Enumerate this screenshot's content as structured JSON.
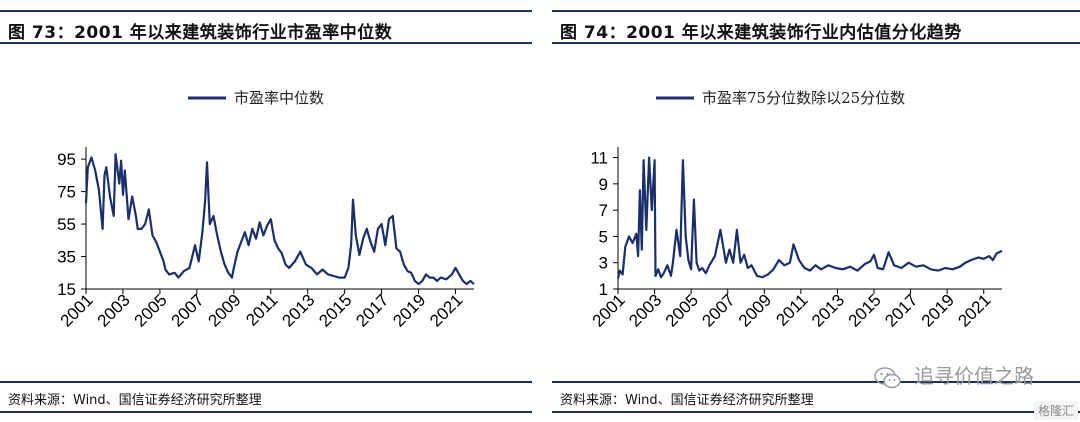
{
  "left_panel": {
    "title": "图 73：2001 年以来建筑装饰行业市盈率中位数",
    "source": "资料来源：Wind、国信证券经济研究所整理"
  },
  "right_panel": {
    "title": "图 74：2001 年以来建筑装饰行业内估值分化趋势",
    "source": "资料来源：Wind、国信证券经济研究所整理"
  },
  "watermark": {
    "text": "追寻价值之路",
    "icon": "wechat-icon"
  },
  "logo": {
    "text": "格隆汇"
  },
  "colors": {
    "line": "#1a2f6b",
    "accent": "#1a2f5a"
  },
  "chart_data": [
    {
      "type": "line",
      "title": "",
      "legend": "市盈率中位数",
      "ylim": [
        15,
        100
      ],
      "xlim": [
        2001,
        2022
      ],
      "yticks": [
        15,
        35,
        55,
        75,
        95
      ],
      "xticks": [
        "2001",
        "2003",
        "2005",
        "2007",
        "2009",
        "2011",
        "2013",
        "2015",
        "2017",
        "2019",
        "2021"
      ],
      "series": [
        {
          "name": "市盈率中位数",
          "x": [
            2001.0,
            2001.1,
            2001.3,
            2001.5,
            2001.7,
            2001.9,
            2002.0,
            2002.1,
            2002.3,
            2002.5,
            2002.6,
            2002.8,
            2002.9,
            2003.0,
            2003.1,
            2003.3,
            2003.5,
            2003.7,
            2003.8,
            2004.0,
            2004.2,
            2004.4,
            2004.6,
            2004.8,
            2005.0,
            2005.2,
            2005.3,
            2005.5,
            2005.8,
            2006.0,
            2006.3,
            2006.6,
            2006.9,
            2007.1,
            2007.3,
            2007.45,
            2007.55,
            2007.7,
            2007.9,
            2008.1,
            2008.3,
            2008.5,
            2008.7,
            2008.9,
            2009.0,
            2009.2,
            2009.4,
            2009.6,
            2009.8,
            2010.0,
            2010.2,
            2010.4,
            2010.6,
            2010.8,
            2011.0,
            2011.2,
            2011.4,
            2011.6,
            2011.8,
            2012.0,
            2012.3,
            2012.6,
            2012.9,
            2013.2,
            2013.5,
            2013.8,
            2014.1,
            2014.4,
            2014.7,
            2015.0,
            2015.2,
            2015.35,
            2015.45,
            2015.6,
            2015.8,
            2016.0,
            2016.2,
            2016.4,
            2016.6,
            2016.8,
            2017.0,
            2017.2,
            2017.4,
            2017.6,
            2017.8,
            2018.0,
            2018.2,
            2018.4,
            2018.6,
            2018.8,
            2019.0,
            2019.2,
            2019.4,
            2019.6,
            2019.8,
            2020.0,
            2020.2,
            2020.5,
            2020.8,
            2021.0,
            2021.2,
            2021.4,
            2021.6,
            2021.8,
            2022.0
          ],
          "values": [
            68,
            90,
            96,
            88,
            76,
            52,
            85,
            90,
            72,
            60,
            98,
            80,
            94,
            73,
            88,
            58,
            72,
            60,
            52,
            52,
            55,
            64,
            48,
            44,
            38,
            32,
            27,
            24,
            25,
            22,
            26,
            28,
            42,
            32,
            50,
            70,
            93,
            55,
            60,
            48,
            38,
            30,
            25,
            22,
            28,
            38,
            44,
            50,
            42,
            52,
            46,
            56,
            48,
            54,
            58,
            45,
            40,
            37,
            30,
            28,
            32,
            38,
            30,
            28,
            24,
            27,
            24,
            23,
            22,
            22,
            28,
            42,
            70,
            48,
            36,
            46,
            52,
            44,
            38,
            52,
            55,
            42,
            58,
            60,
            40,
            38,
            30,
            26,
            25,
            20,
            18,
            20,
            24,
            22,
            22,
            20,
            22,
            21,
            24,
            28,
            24,
            20,
            18,
            20,
            18
          ]
        }
      ]
    },
    {
      "type": "line",
      "title": "",
      "legend": "市盈率75分位数除以25分位数",
      "ylim": [
        1,
        11.5
      ],
      "xlim": [
        2001,
        2022
      ],
      "yticks": [
        1,
        3,
        5,
        7,
        9,
        11
      ],
      "xticks": [
        "2001",
        "2003",
        "2005",
        "2007",
        "2009",
        "2011",
        "2013",
        "2015",
        "2017",
        "2019",
        "2021"
      ],
      "series": [
        {
          "name": "市盈率75分位数除以25分位数",
          "x": [
            2001.0,
            2001.1,
            2001.25,
            2001.4,
            2001.6,
            2001.8,
            2002.0,
            2002.1,
            2002.2,
            2002.3,
            2002.4,
            2002.55,
            2002.7,
            2002.85,
            2003.0,
            2003.05,
            2003.2,
            2003.35,
            2003.5,
            2003.7,
            2003.9,
            2004.0,
            2004.2,
            2004.4,
            2004.55,
            2004.7,
            2004.85,
            2005.0,
            2005.15,
            2005.3,
            2005.45,
            2005.6,
            2005.8,
            2006.0,
            2006.3,
            2006.6,
            2006.9,
            2007.1,
            2007.3,
            2007.5,
            2007.7,
            2007.9,
            2008.1,
            2008.3,
            2008.6,
            2008.9,
            2009.2,
            2009.5,
            2009.8,
            2010.1,
            2010.4,
            2010.6,
            2010.9,
            2011.2,
            2011.5,
            2011.8,
            2012.1,
            2012.5,
            2012.9,
            2013.3,
            2013.7,
            2014.1,
            2014.5,
            2014.8,
            2015.0,
            2015.2,
            2015.5,
            2015.8,
            2016.1,
            2016.5,
            2016.9,
            2017.3,
            2017.7,
            2018.1,
            2018.5,
            2018.9,
            2019.3,
            2019.7,
            2020.0,
            2020.3,
            2020.7,
            2021.0,
            2021.3,
            2021.5,
            2021.7,
            2022.0
          ],
          "values": [
            1.8,
            2.4,
            2.1,
            4.2,
            5.0,
            4.5,
            5.2,
            3.5,
            8.5,
            4.0,
            10.8,
            5.5,
            11.0,
            7.0,
            10.8,
            2.0,
            2.5,
            1.9,
            2.2,
            2.8,
            2.0,
            3.0,
            5.5,
            3.5,
            10.8,
            5.0,
            3.2,
            2.5,
            7.8,
            3.0,
            2.4,
            2.6,
            2.2,
            2.8,
            3.5,
            5.5,
            3.0,
            4.0,
            3.0,
            5.5,
            3.0,
            3.6,
            2.6,
            2.8,
            2.0,
            1.9,
            2.1,
            2.5,
            3.2,
            2.8,
            3.0,
            4.4,
            3.2,
            2.6,
            2.4,
            2.8,
            2.5,
            2.8,
            2.6,
            2.5,
            2.7,
            2.4,
            2.9,
            3.1,
            3.6,
            2.6,
            2.5,
            3.8,
            2.8,
            2.6,
            3.0,
            2.7,
            2.8,
            2.5,
            2.4,
            2.6,
            2.5,
            2.7,
            3.0,
            3.2,
            3.4,
            3.3,
            3.5,
            3.2,
            3.7,
            3.9
          ]
        }
      ]
    }
  ]
}
